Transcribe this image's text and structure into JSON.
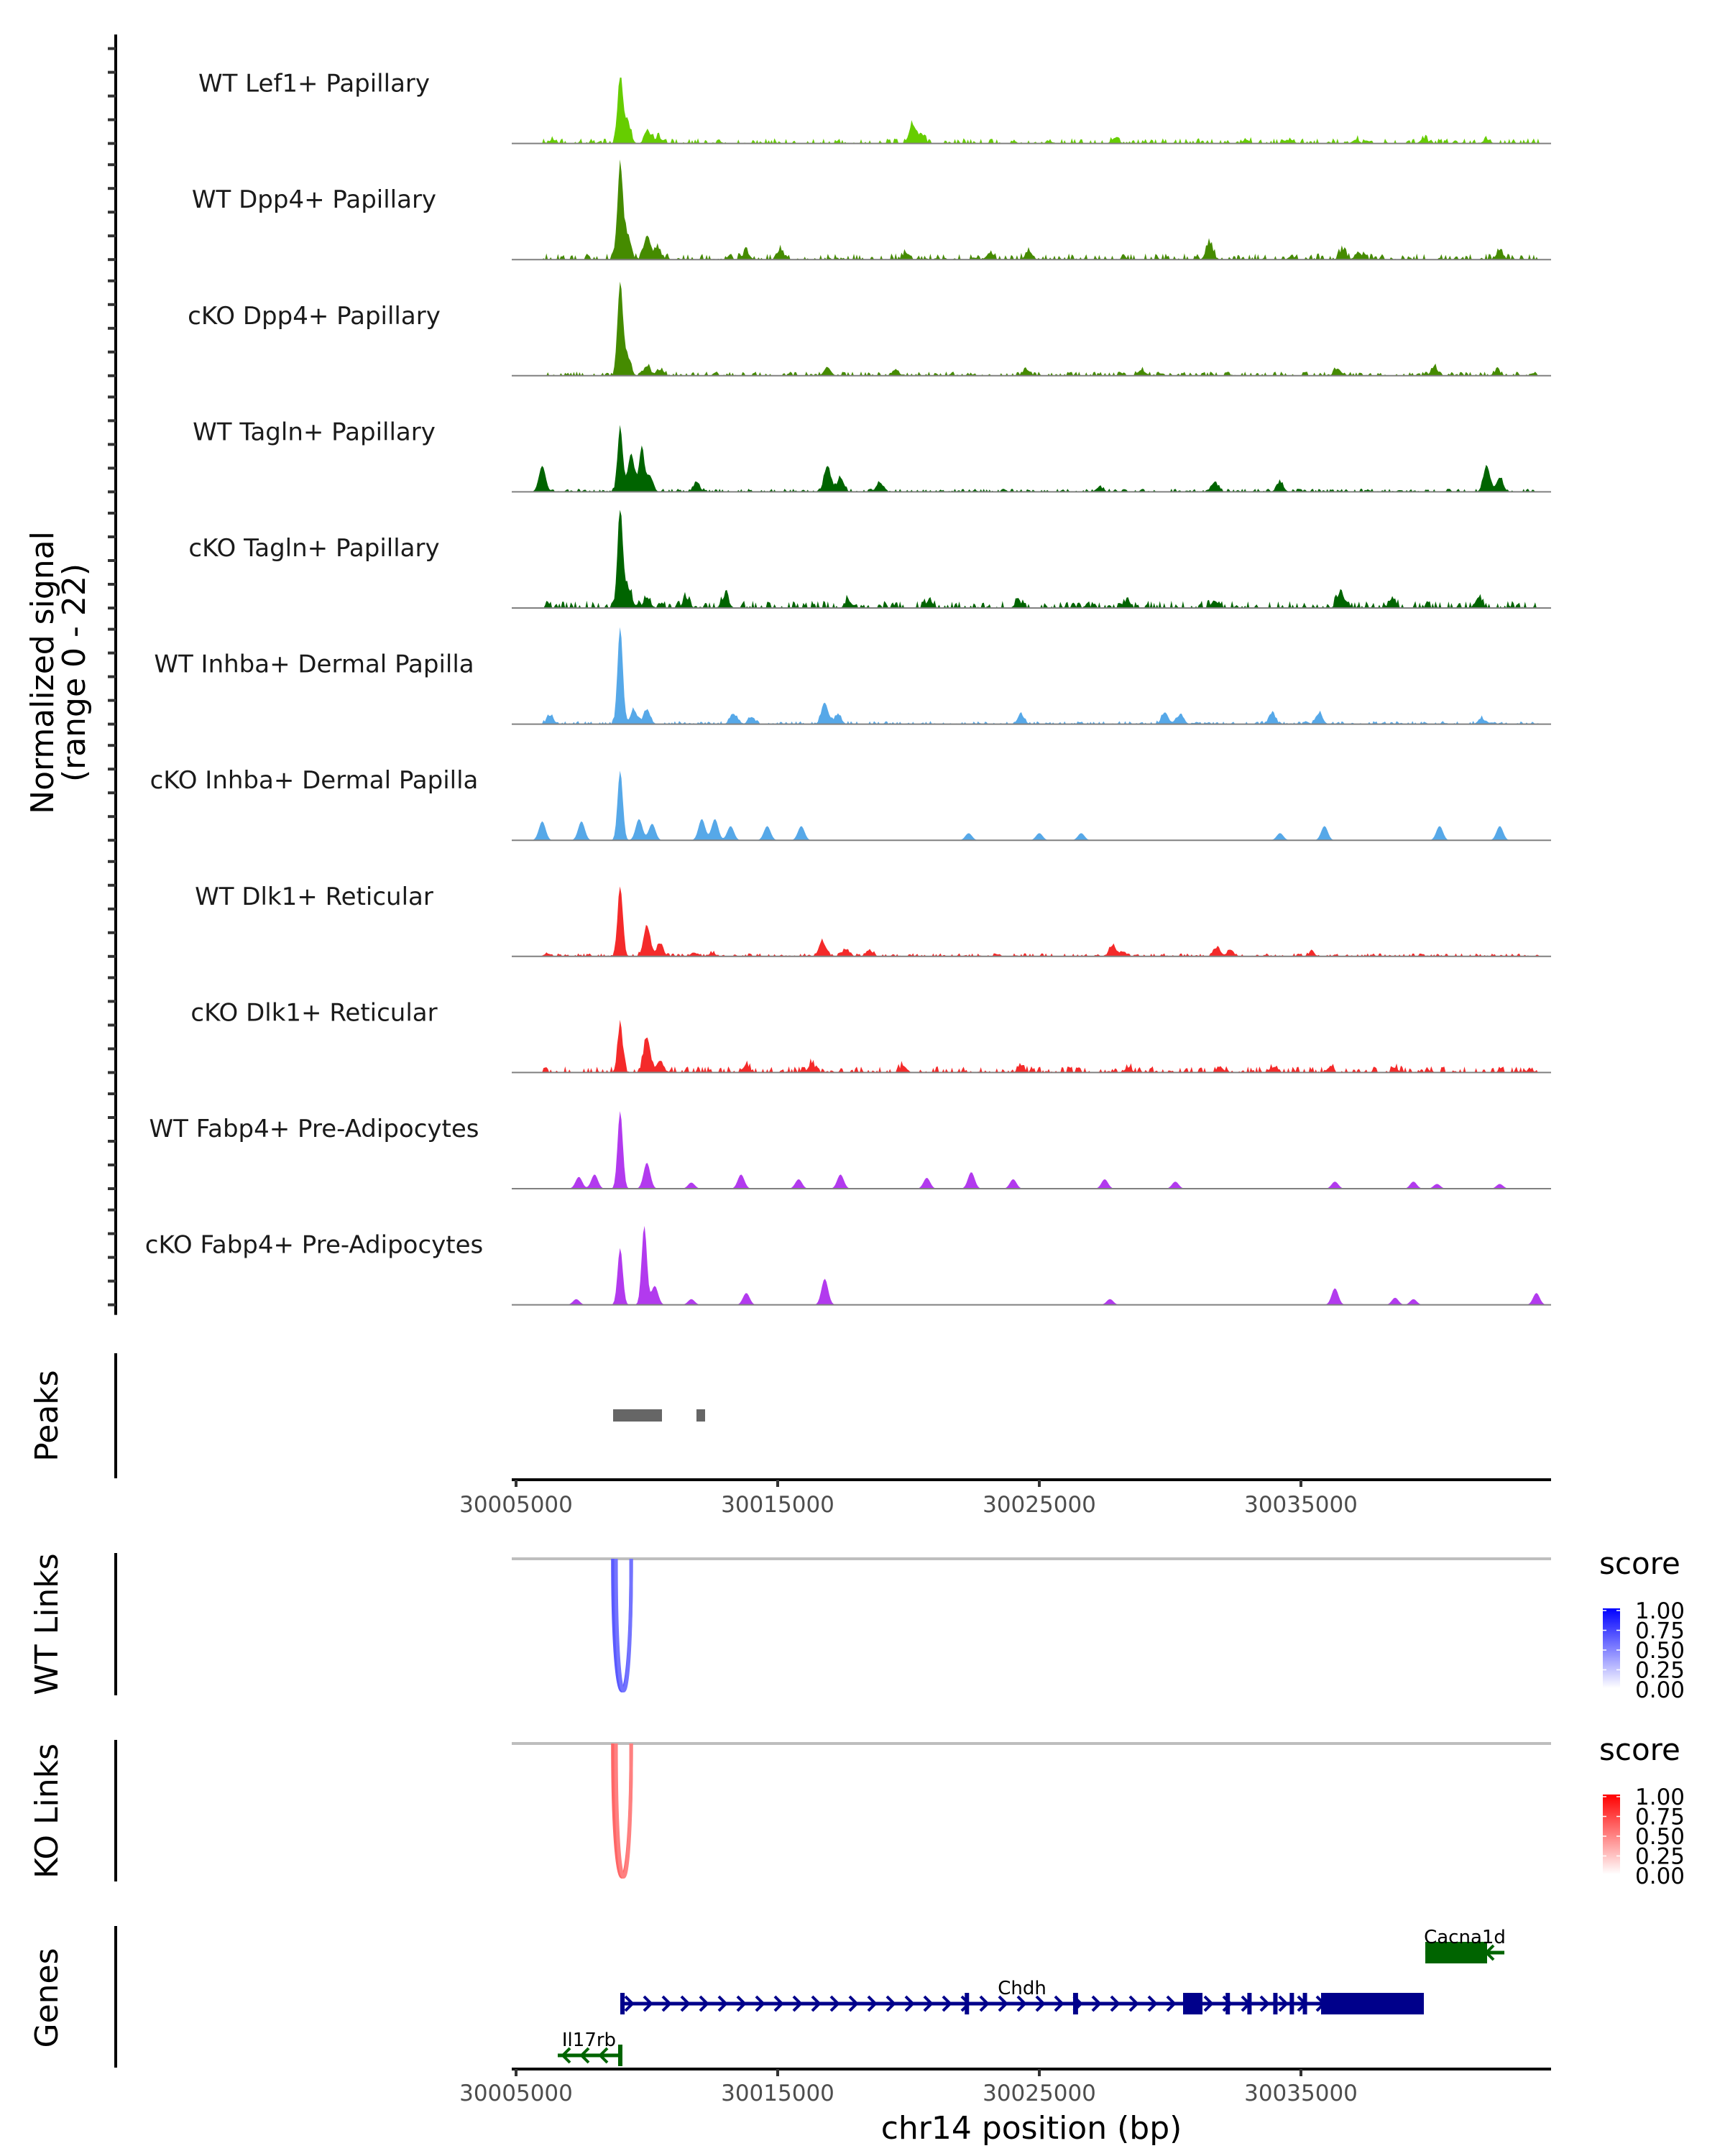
{
  "chart_data": {
    "type": "area",
    "title": "",
    "region": {
      "chrom": "chr14",
      "start": 30004835,
      "end": 30044560
    },
    "xlabel": "chr14 position (bp)",
    "xticks": [
      30005000,
      30015000,
      30025000,
      30035000
    ],
    "xtick_labels": [
      "30005000",
      "30015000",
      "30025000",
      "30035000"
    ],
    "ylabel_line1": "Normalized signal",
    "ylabel_line2": "(range 0 - 22)",
    "ylim": [
      0,
      22
    ],
    "coverage_tracks": [
      {
        "name": "WT Lef1+ Papillary",
        "color": "#66CD00",
        "peaks": [
          [
            30008980,
            13.5
          ],
          [
            30009250,
            4.5
          ],
          [
            30010050,
            2.2
          ],
          [
            30010450,
            1.2
          ],
          [
            30006400,
            0.8
          ],
          [
            30020150,
            4
          ],
          [
            30020500,
            1.8
          ],
          [
            30027900,
            1.2
          ],
          [
            30032900,
            0.8
          ],
          [
            30034600,
            0.8
          ],
          [
            30037100,
            0.8
          ],
          [
            30039700,
            1.0
          ],
          [
            30042100,
            0.8
          ]
        ],
        "noise": 0.5
      },
      {
        "name": "WT Dpp4+ Papillary",
        "color": "#458B00",
        "peaks": [
          [
            30008980,
            19.7
          ],
          [
            30009250,
            5
          ],
          [
            30010000,
            4
          ],
          [
            30010400,
            2.5
          ],
          [
            30013800,
            1.5
          ],
          [
            30015100,
            2
          ],
          [
            30019900,
            1.3
          ],
          [
            30023100,
            1.2
          ],
          [
            30024600,
            1.8
          ],
          [
            30031500,
            3.5
          ],
          [
            30036600,
            2
          ],
          [
            30037200,
            1.5
          ],
          [
            30042600,
            1.8
          ]
        ],
        "noise": 0.6
      },
      {
        "name": "cKO Dpp4+ Papillary",
        "color": "#458B00",
        "peaks": [
          [
            30008980,
            19.5
          ],
          [
            30009250,
            4
          ],
          [
            30010000,
            2
          ],
          [
            30010500,
            1.2
          ],
          [
            30016900,
            1.8
          ],
          [
            30019500,
            1.2
          ],
          [
            30024500,
            1.3
          ],
          [
            30028900,
            1.2
          ],
          [
            30036400,
            1.5
          ],
          [
            30040100,
            1.8
          ],
          [
            30042500,
            1.0
          ]
        ],
        "noise": 0.4
      },
      {
        "name": "WT Tagln+ Papillary",
        "color": "#006400",
        "peaks": [
          [
            30006000,
            5.5
          ],
          [
            30008980,
            13.5
          ],
          [
            30009400,
            8
          ],
          [
            30009800,
            9
          ],
          [
            30010100,
            3.5
          ],
          [
            30011900,
            1.8
          ],
          [
            30016900,
            5.5
          ],
          [
            30017400,
            3
          ],
          [
            30018900,
            2
          ],
          [
            30027300,
            1
          ],
          [
            30031700,
            2
          ],
          [
            30034200,
            2
          ],
          [
            30042100,
            5.5
          ],
          [
            30042600,
            3
          ]
        ],
        "noise": 0.3
      },
      {
        "name": "cKO Tagln+ Papillary",
        "color": "#006400",
        "peaks": [
          [
            30008980,
            20.6
          ],
          [
            30009300,
            4
          ],
          [
            30010000,
            2.2
          ],
          [
            30011500,
            2
          ],
          [
            30013000,
            2.5
          ],
          [
            30017700,
            1.5
          ],
          [
            30020800,
            1.6
          ],
          [
            30024200,
            1.4
          ],
          [
            30028300,
            1.3
          ],
          [
            30031700,
            1.5
          ],
          [
            30036500,
            3.2
          ],
          [
            30038500,
            2
          ],
          [
            30041800,
            2.3
          ]
        ],
        "noise": 0.7
      },
      {
        "name": "WT Inhba+ Dermal Papilla",
        "color": "#56A8E8",
        "peaks": [
          [
            30008980,
            20.5
          ],
          [
            30009500,
            3
          ],
          [
            30010000,
            3
          ],
          [
            30006300,
            1.8
          ],
          [
            30013300,
            2.2
          ],
          [
            30014000,
            1.5
          ],
          [
            30016800,
            4.5
          ],
          [
            30017300,
            2
          ],
          [
            30024300,
            2
          ],
          [
            30029800,
            2.5
          ],
          [
            30030400,
            2
          ],
          [
            30033900,
            2.3
          ],
          [
            30035700,
            2.3
          ],
          [
            30041900,
            1.2
          ]
        ],
        "noise": 0.3
      },
      {
        "name": "cKO Inhba+ Dermal Papilla",
        "color": "#56A8E8",
        "peaks": [
          [
            30006000,
            4
          ],
          [
            30007500,
            4
          ],
          [
            30008980,
            14.7
          ],
          [
            30009700,
            4.5
          ],
          [
            30010200,
            3.5
          ],
          [
            30012100,
            4.5
          ],
          [
            30012600,
            4.5
          ],
          [
            30013200,
            3
          ],
          [
            30014600,
            3
          ],
          [
            30015900,
            3
          ],
          [
            30022300,
            1.5
          ],
          [
            30025000,
            1.5
          ],
          [
            30026600,
            1.5
          ],
          [
            30034200,
            1.5
          ],
          [
            30035900,
            3
          ],
          [
            30040300,
            3
          ],
          [
            30042600,
            3
          ]
        ],
        "noise": 0.0
      },
      {
        "name": "WT Dlk1+ Reticular",
        "color": "#F42A2A",
        "peaks": [
          [
            30008980,
            14.8
          ],
          [
            30010000,
            6.5
          ],
          [
            30010500,
            2.5
          ],
          [
            30006200,
            0.6
          ],
          [
            30011800,
            0.8
          ],
          [
            30012500,
            0.7
          ],
          [
            30016700,
            3.2
          ],
          [
            30017600,
            1.5
          ],
          [
            30018500,
            1.3
          ],
          [
            30027800,
            2.3
          ],
          [
            30028200,
            1
          ],
          [
            30031800,
            1.8
          ],
          [
            30032300,
            1.2
          ],
          [
            30035400,
            0.8
          ]
        ],
        "noise": 0.3
      },
      {
        "name": "cKO Dlk1+ Reticular",
        "color": "#F42A2A",
        "peaks": [
          [
            30008980,
            10
          ],
          [
            30010000,
            7.5
          ],
          [
            30010500,
            2.5
          ],
          [
            30013800,
            1.5
          ],
          [
            30016300,
            1.8
          ],
          [
            30019800,
            1.4
          ],
          [
            30024300,
            1.2
          ],
          [
            30028400,
            1.0
          ],
          [
            30031900,
            1.2
          ],
          [
            30034000,
            1.2
          ],
          [
            30036100,
            0.9
          ],
          [
            30038600,
            0.8
          ]
        ],
        "noise": 0.6
      },
      {
        "name": "WT Fabp4+ Pre-Adipocytes",
        "color": "#B23AEE",
        "peaks": [
          [
            30007400,
            2.5
          ],
          [
            30008000,
            3
          ],
          [
            30008980,
            16.4
          ],
          [
            30010000,
            5.5
          ],
          [
            30011700,
            1.3
          ],
          [
            30013600,
            3
          ],
          [
            30015800,
            2
          ],
          [
            30017400,
            3
          ],
          [
            30020700,
            2.3
          ],
          [
            30022400,
            3.5
          ],
          [
            30024000,
            2
          ],
          [
            30027500,
            2
          ],
          [
            30030200,
            1.5
          ],
          [
            30036300,
            1.5
          ],
          [
            30039300,
            1.5
          ],
          [
            30040200,
            1.0
          ],
          [
            30042600,
            1.0
          ]
        ],
        "noise": 0.0
      },
      {
        "name": "cKO Fabp4+ Pre-Adipocytes",
        "color": "#B23AEE",
        "peaks": [
          [
            30007300,
            1.2
          ],
          [
            30008980,
            12
          ],
          [
            30009900,
            16.7
          ],
          [
            30010300,
            4
          ],
          [
            30011700,
            1.2
          ],
          [
            30013800,
            2.5
          ],
          [
            30016800,
            5.5
          ],
          [
            30027700,
            1.2
          ],
          [
            30036300,
            3.5
          ],
          [
            30038600,
            1.5
          ],
          [
            30039300,
            1.2
          ],
          [
            30044000,
            2.5
          ]
        ],
        "noise": 0.0
      }
    ],
    "peaks_track": {
      "label": "Peaks",
      "color": "#666666",
      "regions": [
        [
          30008709,
          30010577
        ],
        [
          30011895,
          30012225
        ]
      ]
    },
    "link_tracks": [
      {
        "label": "WT Links",
        "legend_title": "score",
        "legend_ticks": [
          "1.00",
          "0.75",
          "0.50",
          "0.25",
          "0.00"
        ],
        "color_low": "#FFFFFF",
        "color_high": "#0000FF",
        "links": [
          {
            "start": 30008700,
            "end": 30009400,
            "score": 0.65
          },
          {
            "start": 30008820,
            "end": 30009400,
            "score": 0.55
          }
        ]
      },
      {
        "label": "KO Links",
        "legend_title": "score",
        "legend_ticks": [
          "1.00",
          "0.75",
          "0.50",
          "0.25",
          "0.00"
        ],
        "color_low": "#FFFFFF",
        "color_high": "#FF0000",
        "links": [
          {
            "start": 30008700,
            "end": 30009400,
            "score": 0.6
          },
          {
            "start": 30008820,
            "end": 30009400,
            "score": 0.5
          }
        ]
      }
    ],
    "genes_track": {
      "label": "Genes",
      "genes": [
        {
          "name": "Cacna1d",
          "strand": "-",
          "color": "#006400",
          "start": 30039753,
          "end": 30042775,
          "exons": [
            [
              30039753,
              30042115
            ]
          ],
          "row": 0
        },
        {
          "name": "Chdh",
          "strand": "+",
          "color": "#00008B",
          "start": 30008983,
          "end": 30039698,
          "exons": [
            [
              30008983,
              30009150
            ],
            [
              30022150,
              30022300
            ],
            [
              30026290,
              30026480
            ],
            [
              30030494,
              30031236
            ],
            [
              30032120,
              30032220
            ],
            [
              30032950,
              30033050
            ],
            [
              30033940,
              30034030
            ],
            [
              30034570,
              30034660
            ],
            [
              30035070,
              30035150
            ],
            [
              30035769,
              30039698
            ]
          ],
          "row": 1
        },
        {
          "name": "Il17rb",
          "strand": "-",
          "color": "#006400",
          "start": 30006593,
          "end": 30008983,
          "exons": [
            [
              30008900,
              30008983
            ]
          ],
          "row": 2
        }
      ]
    }
  }
}
